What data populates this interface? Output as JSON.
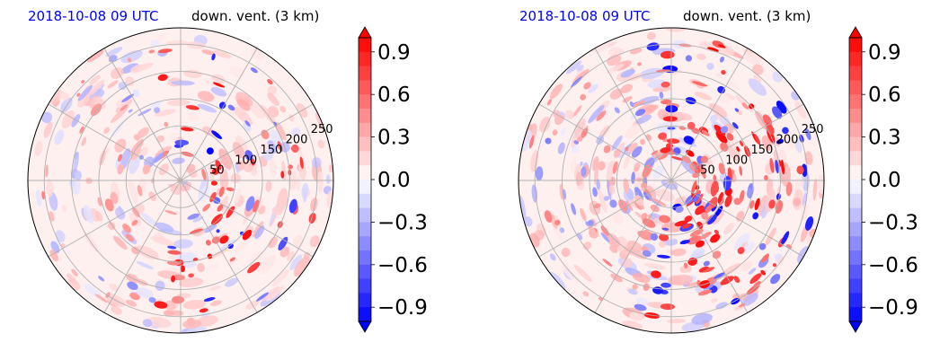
{
  "panels": [
    {
      "title_time": "2018-10-08 09 UTC",
      "title_var": "down. vent. (3 km)",
      "rings": [
        50,
        100,
        150,
        200,
        250
      ],
      "colorbar": {
        "ticks": [
          "0.9",
          "0.6",
          "0.3",
          "0.0",
          "−0.3",
          "−0.6",
          "−0.9"
        ]
      }
    },
    {
      "title_time": "2018-10-08 09 UTC",
      "title_var": "down. vent. (3 km)",
      "rings": [
        50,
        100,
        150,
        200,
        250
      ],
      "colorbar": {
        "ticks": [
          "0.9",
          "0.6",
          "0.3",
          "0.0",
          "−0.3",
          "−0.6",
          "−0.9"
        ]
      }
    }
  ],
  "chart_data": [
    {
      "type": "heatmap",
      "projection": "polar",
      "title": "2018-10-08 09 UTC down. vent. (3 km)",
      "radial_ticks": [
        50,
        100,
        150,
        200,
        250
      ],
      "colorbar": {
        "min": -1.0,
        "max": 1.0,
        "ticks": [
          0.9,
          0.6,
          0.3,
          0.0,
          -0.3,
          -0.6,
          -0.9
        ],
        "colormap": "bwr",
        "extend": "both"
      },
      "grid": true
    },
    {
      "type": "heatmap",
      "projection": "polar",
      "title": "2018-10-08 09 UTC down. vent. (3 km)",
      "radial_ticks": [
        50,
        100,
        150,
        200,
        250
      ],
      "colorbar": {
        "min": -1.0,
        "max": 1.0,
        "ticks": [
          0.9,
          0.6,
          0.3,
          0.0,
          -0.3,
          -0.6,
          -0.9
        ],
        "colormap": "bwr",
        "extend": "both"
      },
      "grid": true
    }
  ]
}
